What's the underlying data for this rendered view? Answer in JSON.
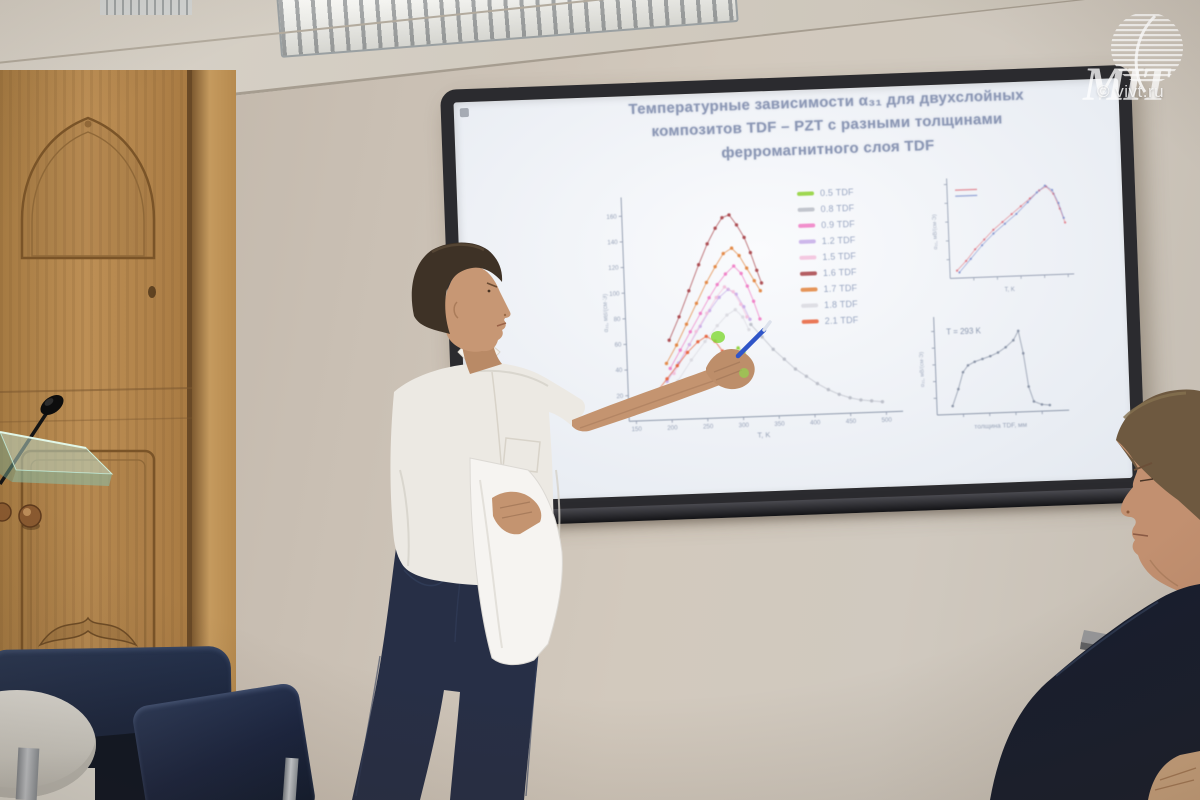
{
  "scene": {
    "watermark": {
      "logo_text": "MIT",
      "site": "© vivt.ru"
    }
  },
  "slide": {
    "title_line1": "Температурные зависимости α₃₁ для двухслойных",
    "title_line2": "композитов TDF – PZT с разными толщинами",
    "title_line3": "ферромагнитного слоя TDF",
    "legend": [
      {
        "label": "0.5 TDF",
        "color": "#8ed133"
      },
      {
        "label": "0.8 TDF",
        "color": "#b9bcc6"
      },
      {
        "label": "0.9 TDF",
        "color": "#f07cc4"
      },
      {
        "label": "1.2 TDF",
        "color": "#c6abe8"
      },
      {
        "label": "1.5 TDF",
        "color": "#f3bfdc"
      },
      {
        "label": "1.6 TDF",
        "color": "#a84348"
      },
      {
        "label": "1.7 TDF",
        "color": "#e2833c"
      },
      {
        "label": "1.8 TDF",
        "color": "#d9d9e0"
      },
      {
        "label": "2.1 TDF",
        "color": "#e8603a"
      }
    ]
  },
  "chart_data": [
    {
      "type": "scatter",
      "title": "",
      "xlabel": "T, K",
      "ylabel": "α₃₁, мВ/(см·Э)",
      "xlim": [
        140,
        515
      ],
      "ylim": [
        0,
        170
      ],
      "x_ticks": [
        150,
        200,
        250,
        300,
        350,
        400,
        450,
        500
      ],
      "y_ticks": [
        20,
        40,
        60,
        80,
        100,
        120,
        140,
        160
      ],
      "legend_position": "right",
      "series": [
        {
          "name": "0.5 TDF",
          "color": "#8ed133",
          "points": [
            [
              288,
              50
            ],
            [
              296,
              54
            ],
            [
              304,
              50
            ]
          ]
        },
        {
          "name": "0.8 TDF",
          "color": "#b9bcc6",
          "points": [
            [
              315,
              72
            ],
            [
              330,
              62
            ],
            [
              345,
              52
            ],
            [
              360,
              44
            ],
            [
              375,
              36
            ],
            [
              390,
              30
            ],
            [
              405,
              24
            ],
            [
              420,
              19
            ],
            [
              435,
              15
            ],
            [
              450,
              12
            ],
            [
              465,
              10
            ],
            [
              480,
              9
            ],
            [
              495,
              8
            ]
          ]
        },
        {
          "name": "0.9 TDF",
          "color": "#f07cc4",
          "points": [
            [
              200,
              40
            ],
            [
              215,
              54
            ],
            [
              230,
              68
            ],
            [
              245,
              82
            ],
            [
              258,
              94
            ],
            [
              270,
              104
            ],
            [
              282,
              112
            ],
            [
              294,
              118
            ],
            [
              304,
              112
            ],
            [
              312,
              102
            ],
            [
              320,
              90
            ],
            [
              328,
              76
            ]
          ]
        },
        {
          "name": "1.2 TDF",
          "color": "#c6abe8",
          "points": [
            [
              195,
              30
            ],
            [
              212,
              44
            ],
            [
              228,
              58
            ],
            [
              244,
              72
            ],
            [
              258,
              84
            ],
            [
              272,
              94
            ],
            [
              285,
              100
            ],
            [
              296,
              96
            ],
            [
              306,
              86
            ],
            [
              314,
              76
            ]
          ]
        },
        {
          "name": "1.5 TDF",
          "color": "#f3bfdc",
          "points": [
            [
              205,
              36
            ],
            [
              222,
              52
            ],
            [
              238,
              68
            ],
            [
              254,
              82
            ],
            [
              268,
              94
            ],
            [
              280,
              102
            ],
            [
              292,
              98
            ],
            [
              302,
              88
            ],
            [
              310,
              78
            ]
          ]
        },
        {
          "name": "1.6 TDF",
          "color": "#a84348",
          "points": [
            [
              200,
              62
            ],
            [
              215,
              80
            ],
            [
              230,
              100
            ],
            [
              245,
              120
            ],
            [
              258,
              136
            ],
            [
              270,
              148
            ],
            [
              280,
              156
            ],
            [
              290,
              158
            ],
            [
              300,
              150
            ],
            [
              310,
              140
            ],
            [
              318,
              128
            ],
            [
              326,
              114
            ],
            [
              332,
              104
            ]
          ]
        },
        {
          "name": "1.7 TDF",
          "color": "#e2833c",
          "points": [
            [
              195,
              44
            ],
            [
              210,
              58
            ],
            [
              225,
              74
            ],
            [
              240,
              90
            ],
            [
              255,
              106
            ],
            [
              268,
              118
            ],
            [
              280,
              128
            ],
            [
              292,
              132
            ],
            [
              302,
              126
            ],
            [
              312,
              116
            ],
            [
              322,
              106
            ],
            [
              330,
              98
            ]
          ]
        },
        {
          "name": "1.8 TDF",
          "color": "#d9d9e0",
          "points": [
            [
              210,
              30
            ],
            [
              230,
              46
            ],
            [
              250,
              60
            ],
            [
              268,
              72
            ],
            [
              282,
              80
            ],
            [
              294,
              84
            ],
            [
              304,
              78
            ],
            [
              312,
              68
            ]
          ]
        },
        {
          "name": "2.1 TDF",
          "color": "#e8603a",
          "points": [
            [
              165,
              14
            ],
            [
              180,
              22
            ],
            [
              195,
              32
            ],
            [
              210,
              42
            ],
            [
              225,
              52
            ],
            [
              240,
              60
            ],
            [
              252,
              64
            ],
            [
              264,
              60
            ],
            [
              274,
              52
            ],
            [
              282,
              44
            ]
          ]
        }
      ]
    },
    {
      "type": "scatter",
      "xlabel": "T, K",
      "ylabel": "α₃₁, мВ/(см·Э)",
      "xlim": [
        0,
        1
      ],
      "ylim": [
        0,
        1
      ],
      "x_ticks": [
        0.2,
        0.4,
        0.6,
        0.8,
        1.0
      ],
      "y_ticks": [
        0.2,
        0.4,
        0.6,
        0.8,
        1.0
      ],
      "series": [
        {
          "name": "inset-series-red",
          "color": "#e0707e",
          "points": [
            [
              0.06,
              0.08
            ],
            [
              0.14,
              0.18
            ],
            [
              0.22,
              0.3
            ],
            [
              0.3,
              0.4
            ],
            [
              0.38,
              0.5
            ],
            [
              0.46,
              0.58
            ],
            [
              0.54,
              0.66
            ],
            [
              0.62,
              0.74
            ],
            [
              0.7,
              0.82
            ],
            [
              0.78,
              0.9
            ],
            [
              0.84,
              0.94
            ],
            [
              0.9,
              0.86
            ],
            [
              0.95,
              0.7
            ],
            [
              0.99,
              0.55
            ]
          ]
        },
        {
          "name": "inset-series-blue",
          "color": "#7d90ce",
          "points": [
            [
              0.08,
              0.06
            ],
            [
              0.18,
              0.2
            ],
            [
              0.28,
              0.34
            ],
            [
              0.38,
              0.46
            ],
            [
              0.48,
              0.56
            ],
            [
              0.58,
              0.66
            ],
            [
              0.68,
              0.78
            ],
            [
              0.76,
              0.88
            ],
            [
              0.83,
              0.95
            ],
            [
              0.89,
              0.9
            ],
            [
              0.94,
              0.76
            ],
            [
              0.98,
              0.6
            ]
          ]
        }
      ]
    },
    {
      "type": "line",
      "annotation": "T = 293 K",
      "xlabel": "толщина TDF, мм",
      "ylabel": "α₃₁, мВ/(см·Э)",
      "xlim": [
        0,
        2.4
      ],
      "ylim": [
        0,
        110
      ],
      "x_ticks": [
        0.5,
        1.0,
        1.5,
        2.0
      ],
      "y_ticks": [
        20,
        40,
        60,
        80,
        100
      ],
      "color": "#848ea2",
      "points": [
        [
          0.3,
          10
        ],
        [
          0.42,
          30
        ],
        [
          0.52,
          50
        ],
        [
          0.62,
          58
        ],
        [
          0.75,
          62
        ],
        [
          0.9,
          65
        ],
        [
          1.05,
          68
        ],
        [
          1.2,
          72
        ],
        [
          1.35,
          78
        ],
        [
          1.5,
          86
        ],
        [
          1.6,
          97
        ],
        [
          1.68,
          70
        ],
        [
          1.76,
          30
        ],
        [
          1.85,
          12
        ],
        [
          2.0,
          8
        ],
        [
          2.15,
          7
        ]
      ]
    }
  ]
}
